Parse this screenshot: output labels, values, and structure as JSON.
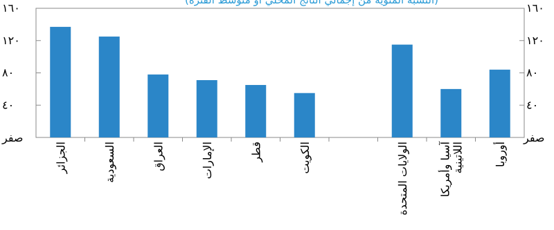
{
  "chart_data": {
    "type": "bar",
    "title": "(النسبة المئوية من إجمالي الناتج المحلي أو متوسط الفترة)",
    "categories": [
      "الجزائر",
      "السعودية",
      "العراق",
      "الإمارات",
      "قطر",
      "الكويت",
      "",
      "الولايات المتحدة",
      "آسيا وأمريكا اللاتينية",
      "أوروبا"
    ],
    "values": [
      137,
      125,
      78,
      71,
      65,
      55,
      null,
      115,
      60,
      84
    ],
    "ylim": [
      0,
      160
    ],
    "yticks": [
      0,
      40,
      80,
      120,
      160
    ],
    "ytick_labels": [
      "صفر",
      "٤٠",
      "٨٠",
      "١٢٠",
      "١٦٠"
    ],
    "xlabel": "",
    "ylabel": "",
    "grid": false,
    "bar_color": "#2b86c8",
    "title_color": "#2b9bd6"
  }
}
